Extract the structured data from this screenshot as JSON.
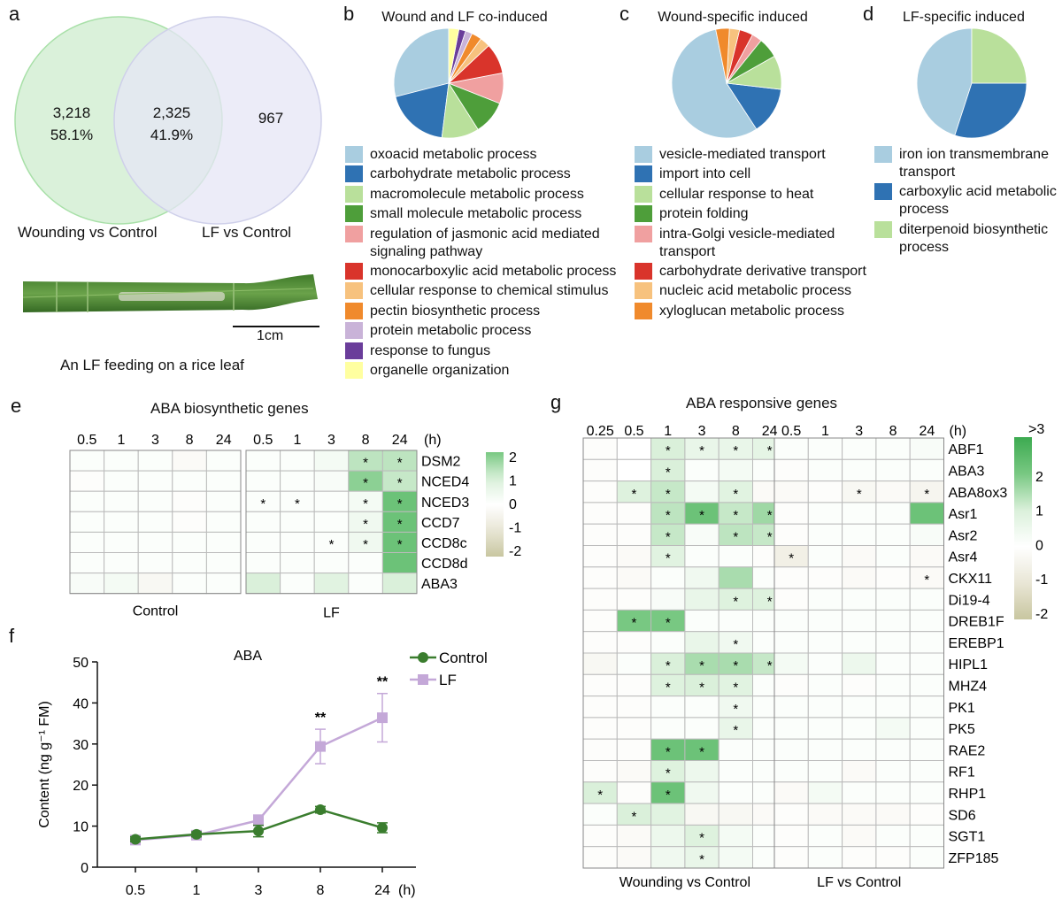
{
  "panel_labels": {
    "a": "a",
    "b": "b",
    "c": "c",
    "d": "d",
    "e": "e",
    "f": "f",
    "g": "g"
  },
  "venn": {
    "left_count": "3,218",
    "left_pct": "58.1%",
    "overlap_count": "2,325",
    "overlap_pct": "41.9%",
    "right_count": "967",
    "left_label": "Wounding vs Control",
    "right_label": "LF vs Control",
    "left_color": "#d8f2d8",
    "right_color": "#e8e8f6"
  },
  "leaf": {
    "scale_label": "1cm",
    "caption": "An LF feeding on a rice leaf"
  },
  "chart_data": [
    {
      "type": "pie",
      "title": "Wound and LF co-induced",
      "labels": [
        "oxoacid metabolic process",
        "carbohydrate metabolic process",
        "macromolecule metabolic process",
        "small molecule metabolic process",
        "regulation of jasmonic acid mediated signaling pathway",
        "monocarboxylic acid metabolic process",
        "cellular response to chemical stimulus",
        "pectin biosynthetic process",
        "protein metabolic process",
        "response to fungus",
        "organelle organization"
      ],
      "legend_lines": [
        [
          "oxoacid metabolic process"
        ],
        [
          "carbohydrate metabolic process"
        ],
        [
          "macromolecule metabolic process"
        ],
        [
          "small molecule metabolic process"
        ],
        [
          "regulation of jasmonic acid mediated",
          "signaling pathway"
        ],
        [
          "monocarboxylic acid metabolic process"
        ],
        [
          "cellular response to chemical stimulus"
        ],
        [
          "pectin biosynthetic process"
        ],
        [
          "protein metabolic process"
        ],
        [
          "response to fungus"
        ],
        [
          "organelle organization"
        ]
      ],
      "values": [
        29,
        19,
        11,
        10,
        9,
        9,
        3,
        3,
        2,
        2,
        3
      ],
      "colors": [
        "#a9cde0",
        "#2f72b3",
        "#b9e09b",
        "#4e9e3a",
        "#f0a0a0",
        "#d9342b",
        "#f7c27e",
        "#f08a2c",
        "#c9b3d8",
        "#6a3d9a",
        "#ffffa0"
      ]
    },
    {
      "type": "pie",
      "title": "Wound-specific induced",
      "labels": [
        "vesicle-mediated transport",
        "import into cell",
        "cellular response to heat",
        "protein folding",
        "intra-Golgi vesicle-mediated transport",
        "carbohydrate derivative transport",
        "nucleic acid metabolic process",
        "xyloglucan metabolic process"
      ],
      "legend_lines": [
        [
          "vesicle-mediated transport"
        ],
        [
          "import into cell"
        ],
        [
          "cellular response to heat"
        ],
        [
          "protein folding"
        ],
        [
          "intra-Golgi vesicle-mediated",
          "transport"
        ],
        [
          "carbohydrate derivative transport"
        ],
        [
          "nucleic acid metabolic process"
        ],
        [
          "xyloglucan metabolic process"
        ]
      ],
      "values": [
        56,
        14,
        10,
        6,
        3,
        4,
        3,
        4
      ],
      "colors": [
        "#a9cde0",
        "#2f72b3",
        "#b9e09b",
        "#4e9e3a",
        "#f0a0a0",
        "#d9342b",
        "#f7c27e",
        "#f08a2c"
      ]
    },
    {
      "type": "pie",
      "title": "LF-specific induced",
      "labels": [
        "iron ion transmembrane transport",
        "carboxylic acid metabolic process",
        "diterpenoid biosynthetic process"
      ],
      "legend_lines": [
        [
          "iron ion transmembrane",
          "transport"
        ],
        [
          "carboxylic acid metabolic",
          "process"
        ],
        [
          "diterpenoid biosynthetic",
          "process"
        ]
      ],
      "values": [
        45,
        30,
        25
      ],
      "colors": [
        "#a9cde0",
        "#2f72b3",
        "#b9e09b"
      ]
    },
    {
      "type": "heatmap",
      "title": "ABA biosynthetic genes",
      "columns": [
        "0.5",
        "1",
        "3",
        "8",
        "24"
      ],
      "unit": "(h)",
      "groups": [
        "Control",
        "LF"
      ],
      "rows": [
        "DSM2",
        "NCED4",
        "NCED3",
        "CCD7",
        "CCD8c",
        "CCD8d",
        "ABA3"
      ],
      "control": [
        [
          0.1,
          0.1,
          0.1,
          -0.2,
          0.1
        ],
        [
          -0.1,
          0.1,
          0.1,
          0.1,
          0.1
        ],
        [
          0.1,
          0.1,
          0.1,
          -0.1,
          0.1
        ],
        [
          0.1,
          0.1,
          0.1,
          -0.1,
          0.1
        ],
        [
          0.1,
          0.1,
          0.1,
          0.1,
          0.1
        ],
        [
          0.1,
          0.1,
          0.1,
          0.1,
          0.1
        ],
        [
          0.2,
          0.3,
          -0.3,
          0.1,
          0.1
        ]
      ],
      "lf": [
        [
          0.1,
          0.1,
          0.3,
          1.3,
          1.3
        ],
        [
          0.1,
          0.1,
          0.2,
          1.8,
          1.2
        ],
        [
          0.1,
          0.1,
          0.1,
          0.3,
          2.2
        ],
        [
          0.1,
          0.1,
          0.1,
          0.4,
          2.2
        ],
        [
          0.1,
          0.1,
          0.1,
          0.4,
          2.2
        ],
        [
          0.1,
          0.1,
          0.1,
          0.1,
          2.2
        ],
        [
          1.0,
          0.1,
          0.8,
          0.1,
          1.0
        ]
      ],
      "lf_stars": [
        [
          0,
          0,
          0,
          1,
          1
        ],
        [
          0,
          0,
          0,
          1,
          1
        ],
        [
          1,
          1,
          0,
          1,
          1
        ],
        [
          0,
          0,
          0,
          1,
          1
        ],
        [
          0,
          0,
          1,
          1,
          1
        ],
        [
          0,
          0,
          0,
          0,
          0
        ],
        [
          0,
          0,
          0,
          0,
          0
        ]
      ],
      "colorbar": {
        "ticks": [
          "2",
          "1",
          "0",
          "-1",
          "-2"
        ],
        "min": -2,
        "max": 2
      }
    },
    {
      "type": "line",
      "title": "ABA",
      "x": [
        "0.5",
        "1",
        "3",
        "8",
        "24"
      ],
      "xunit": "(h)",
      "ylabel": "Content (ng g⁻¹ FM)",
      "ylim": [
        0,
        50
      ],
      "yticks": [
        "0",
        "10",
        "20",
        "30",
        "40",
        "50"
      ],
      "series": [
        {
          "name": "Control",
          "values": [
            6.8,
            8.0,
            8.8,
            14.0,
            9.6
          ],
          "errors": [
            0.6,
            0.6,
            1.4,
            0.8,
            1.2
          ],
          "color": "#3a7d2e"
        },
        {
          "name": "LF",
          "values": [
            6.6,
            7.8,
            11.4,
            29.4,
            36.4
          ],
          "errors": [
            0.5,
            0.5,
            1.3,
            4.2,
            5.9
          ],
          "color": "#c4a8d8"
        }
      ],
      "significance": [
        "",
        "",
        "",
        "**",
        "**"
      ]
    },
    {
      "type": "heatmap",
      "title": "ABA responsive genes",
      "columns": [
        "0.25",
        "0.5",
        "1",
        "3",
        "8",
        "24"
      ],
      "right_columns": [
        "0.5",
        "1",
        "3",
        "8",
        "24"
      ],
      "unit": "(h)",
      "groups": [
        "Wounding vs Control",
        "LF vs Control"
      ],
      "rows": [
        "ABF1",
        "ABA3",
        "ABA8ox3",
        "Asr1",
        "Asr2",
        "Asr4",
        "CKX11",
        "Di19-4",
        "DREB1F",
        "EREBP1",
        "HIPL1",
        "MHZ4",
        "PK1",
        "PK5",
        "RAE2",
        "RF1",
        "RHP1",
        "SD6",
        "SGT1",
        "ZFP185"
      ],
      "wounding": [
        [
          -0.1,
          0,
          1.0,
          0.6,
          0.6,
          0.7
        ],
        [
          -0.1,
          0,
          1.0,
          0.1,
          0.3,
          0.1
        ],
        [
          -0.1,
          0.9,
          1.2,
          0.3,
          0.8,
          -0.2
        ],
        [
          -0.1,
          -0.1,
          1.3,
          2.2,
          1.2,
          1.6
        ],
        [
          -0.1,
          -0.1,
          1.2,
          0.2,
          1.3,
          1.2
        ],
        [
          -0.1,
          -0.2,
          0.8,
          0.1,
          0.1,
          -0.1
        ],
        [
          -0.1,
          -0.2,
          0.1,
          0.4,
          1.5,
          0.1
        ],
        [
          -0.1,
          -0.1,
          0.2,
          0.6,
          0.9,
          0.9
        ],
        [
          -0.1,
          2.0,
          2.0,
          0.1,
          0.1,
          0.1
        ],
        [
          -0.1,
          -0.1,
          0.1,
          0.6,
          0.4,
          0.1
        ],
        [
          -0.3,
          0.1,
          1.0,
          1.5,
          1.5,
          1.2
        ],
        [
          -0.1,
          -0.1,
          0.9,
          1.0,
          0.8,
          0.1
        ],
        [
          -0.1,
          -0.1,
          0.1,
          0.1,
          0.4,
          0.1
        ],
        [
          -0.1,
          -0.1,
          0.1,
          0.1,
          0.6,
          0.1
        ],
        [
          -0.1,
          -0.1,
          2.2,
          2.2,
          0.1,
          0.1
        ],
        [
          -0.1,
          -0.2,
          0.9,
          0.5,
          0.1,
          0.1
        ],
        [
          1.0,
          -0.1,
          2.2,
          0.4,
          0.1,
          0.1
        ],
        [
          0.1,
          1.0,
          0.8,
          -0.3,
          -0.3,
          -0.2
        ],
        [
          -0.1,
          -0.2,
          0.5,
          0.9,
          0.3,
          0.1
        ],
        [
          -0.1,
          -0.2,
          0.4,
          0.6,
          0.3,
          0.1
        ]
      ],
      "wounding_stars": [
        [
          0,
          0,
          1,
          1,
          1,
          1
        ],
        [
          0,
          0,
          1,
          0,
          0,
          0
        ],
        [
          0,
          1,
          1,
          0,
          1,
          0
        ],
        [
          0,
          0,
          1,
          1,
          1,
          1
        ],
        [
          0,
          0,
          1,
          0,
          1,
          1
        ],
        [
          0,
          0,
          1,
          0,
          0,
          0
        ],
        [
          0,
          0,
          0,
          0,
          0,
          0
        ],
        [
          0,
          0,
          0,
          0,
          1,
          1
        ],
        [
          0,
          1,
          1,
          0,
          0,
          0
        ],
        [
          0,
          0,
          0,
          0,
          1,
          0
        ],
        [
          0,
          0,
          1,
          1,
          1,
          1
        ],
        [
          0,
          0,
          1,
          1,
          1,
          0
        ],
        [
          0,
          0,
          0,
          0,
          1,
          0
        ],
        [
          0,
          0,
          0,
          0,
          1,
          0
        ],
        [
          0,
          0,
          1,
          1,
          0,
          0
        ],
        [
          0,
          0,
          1,
          0,
          0,
          0
        ],
        [
          1,
          0,
          1,
          0,
          0,
          0
        ],
        [
          0,
          1,
          0,
          0,
          0,
          0
        ],
        [
          0,
          0,
          0,
          1,
          0,
          0
        ],
        [
          0,
          0,
          0,
          1,
          0,
          0
        ]
      ],
      "lf": [
        [
          0.1,
          0.1,
          0.1,
          0.1,
          0.2
        ],
        [
          -0.1,
          0.1,
          0.1,
          0.1,
          0.1
        ],
        [
          -0.2,
          -0.1,
          -0.3,
          -0.2,
          -0.4
        ],
        [
          -0.1,
          0.1,
          0.1,
          0.1,
          2.2
        ],
        [
          -0.1,
          0.1,
          0.1,
          0.1,
          0.2
        ],
        [
          -0.6,
          0.1,
          -0.2,
          0.1,
          -0.2
        ],
        [
          -0.1,
          -0.1,
          -0.2,
          -0.1,
          -0.2
        ],
        [
          -0.1,
          0.1,
          0.1,
          0.1,
          0.1
        ],
        [
          0.1,
          0.1,
          0.1,
          0.1,
          0.1
        ],
        [
          0.1,
          0.1,
          0.1,
          0.1,
          0.1
        ],
        [
          0.3,
          0.1,
          0.5,
          0.1,
          0.1
        ],
        [
          -0.1,
          0.1,
          -0.1,
          0.1,
          0.1
        ],
        [
          0.1,
          0.1,
          0.1,
          0.1,
          0.1
        ],
        [
          0.1,
          0.1,
          0.1,
          0.3,
          0.1
        ],
        [
          0.1,
          0.1,
          0.1,
          0.1,
          0.1
        ],
        [
          0.1,
          0.1,
          -0.2,
          0.1,
          0.1
        ],
        [
          -0.2,
          0.3,
          0.1,
          0.1,
          0.1
        ],
        [
          -0.1,
          -0.2,
          -0.2,
          -0.2,
          -0.1
        ],
        [
          -0.1,
          0.1,
          -0.2,
          0.1,
          0.1
        ],
        [
          -0.1,
          0.1,
          -0.1,
          -0.1,
          0.1
        ]
      ],
      "lf_stars": [
        [
          0,
          0,
          0,
          0,
          0
        ],
        [
          0,
          0,
          0,
          0,
          0
        ],
        [
          0,
          0,
          1,
          0,
          1
        ],
        [
          0,
          0,
          0,
          0,
          0
        ],
        [
          0,
          0,
          0,
          0,
          0
        ],
        [
          1,
          0,
          0,
          0,
          0
        ],
        [
          0,
          0,
          0,
          0,
          1
        ],
        [
          0,
          0,
          0,
          0,
          0
        ],
        [
          0,
          0,
          0,
          0,
          0
        ],
        [
          0,
          0,
          0,
          0,
          0
        ],
        [
          0,
          0,
          0,
          0,
          0
        ],
        [
          0,
          0,
          0,
          0,
          0
        ],
        [
          0,
          0,
          0,
          0,
          0
        ],
        [
          0,
          0,
          0,
          0,
          0
        ],
        [
          0,
          0,
          0,
          0,
          0
        ],
        [
          0,
          0,
          0,
          0,
          0
        ],
        [
          0,
          0,
          0,
          0,
          0
        ],
        [
          0,
          0,
          0,
          0,
          0
        ],
        [
          0,
          0,
          0,
          0,
          0
        ],
        [
          0,
          0,
          0,
          0,
          0
        ]
      ],
      "colorbar": {
        "ticks": [
          ">3",
          "2",
          "1",
          "0",
          "-1",
          "-2"
        ],
        "min": -2,
        "max": 3
      }
    }
  ]
}
